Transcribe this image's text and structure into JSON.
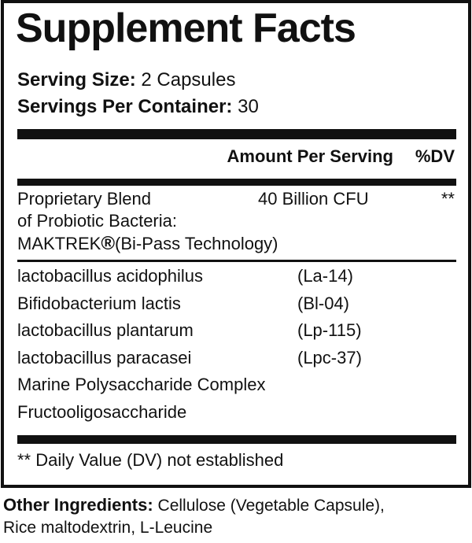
{
  "title": "Supplement Facts",
  "serving_size": {
    "label": "Serving Size:",
    "value": "2 Capsules"
  },
  "servings_per_container": {
    "label": "Servings Per Container:",
    "value": "30"
  },
  "header": {
    "amount": "Amount Per Serving",
    "dv": "%DV"
  },
  "blend": {
    "line1": "Proprietary Blend",
    "line2": "of Probiotic Bacteria:",
    "line3_brand": "MAKTREK",
    "line3_mark": "®",
    "line3_rest": "(Bi-Pass Technology)",
    "amount": "40 Billion CFU",
    "dv": "**"
  },
  "ingredients": [
    {
      "name": "lactobacillus acidophilus",
      "strain": "(La-14)"
    },
    {
      "name": "Bifidobacterium lactis",
      "strain": "(Bl-04)"
    },
    {
      "name": "lactobacillus plantarum",
      "strain": "(Lp-115)"
    },
    {
      "name": "lactobacillus paracasei",
      "strain": "(Lpc-37)"
    },
    {
      "name": "Marine Polysaccharide Complex",
      "strain": ""
    },
    {
      "name": "Fructooligosaccharide",
      "strain": ""
    }
  ],
  "footnote": "** Daily Value (DV) not established",
  "other_ingredients": {
    "label": "Other Ingredients:",
    "line1": "Cellulose (Vegetable Capsule),",
    "line2": "Rice maltodextrin, L-Leucine"
  }
}
